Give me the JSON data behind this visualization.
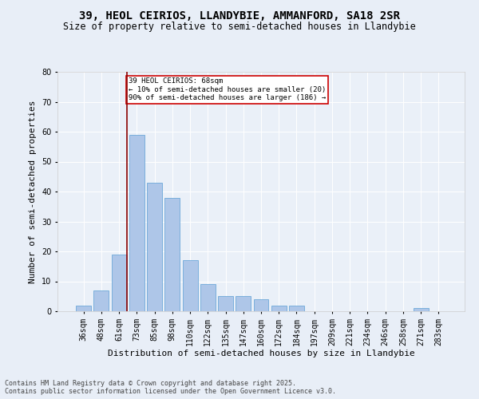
{
  "title": "39, HEOL CEIRIOS, LLANDYBIE, AMMANFORD, SA18 2SR",
  "subtitle": "Size of property relative to semi-detached houses in Llandybie",
  "xlabel": "Distribution of semi-detached houses by size in Llandybie",
  "ylabel": "Number of semi-detached properties",
  "categories": [
    "36sqm",
    "48sqm",
    "61sqm",
    "73sqm",
    "85sqm",
    "98sqm",
    "110sqm",
    "122sqm",
    "135sqm",
    "147sqm",
    "160sqm",
    "172sqm",
    "184sqm",
    "197sqm",
    "209sqm",
    "221sqm",
    "234sqm",
    "246sqm",
    "258sqm",
    "271sqm",
    "283sqm"
  ],
  "values": [
    2,
    7,
    19,
    59,
    43,
    38,
    17,
    9,
    5,
    5,
    4,
    2,
    2,
    0,
    0,
    0,
    0,
    0,
    0,
    1,
    0
  ],
  "bar_color": "#aec6e8",
  "bar_edge_color": "#5a9fd4",
  "vline_x_index": 2,
  "vline_color": "#8b0000",
  "annotation_title": "39 HEOL CEIRIOS: 68sqm",
  "annotation_line1": "← 10% of semi-detached houses are smaller (20)",
  "annotation_line2": "90% of semi-detached houses are larger (186) →",
  "annotation_box_color": "#ffffff",
  "annotation_box_edge": "#cc0000",
  "ylim": [
    0,
    80
  ],
  "yticks": [
    0,
    10,
    20,
    30,
    40,
    50,
    60,
    70,
    80
  ],
  "bg_color": "#e8eef7",
  "plot_bg_color": "#eaf0f8",
  "footer": "Contains HM Land Registry data © Crown copyright and database right 2025.\nContains public sector information licensed under the Open Government Licence v3.0.",
  "title_fontsize": 10,
  "subtitle_fontsize": 8.5,
  "xlabel_fontsize": 8,
  "ylabel_fontsize": 8,
  "tick_fontsize": 7,
  "footer_fontsize": 6
}
